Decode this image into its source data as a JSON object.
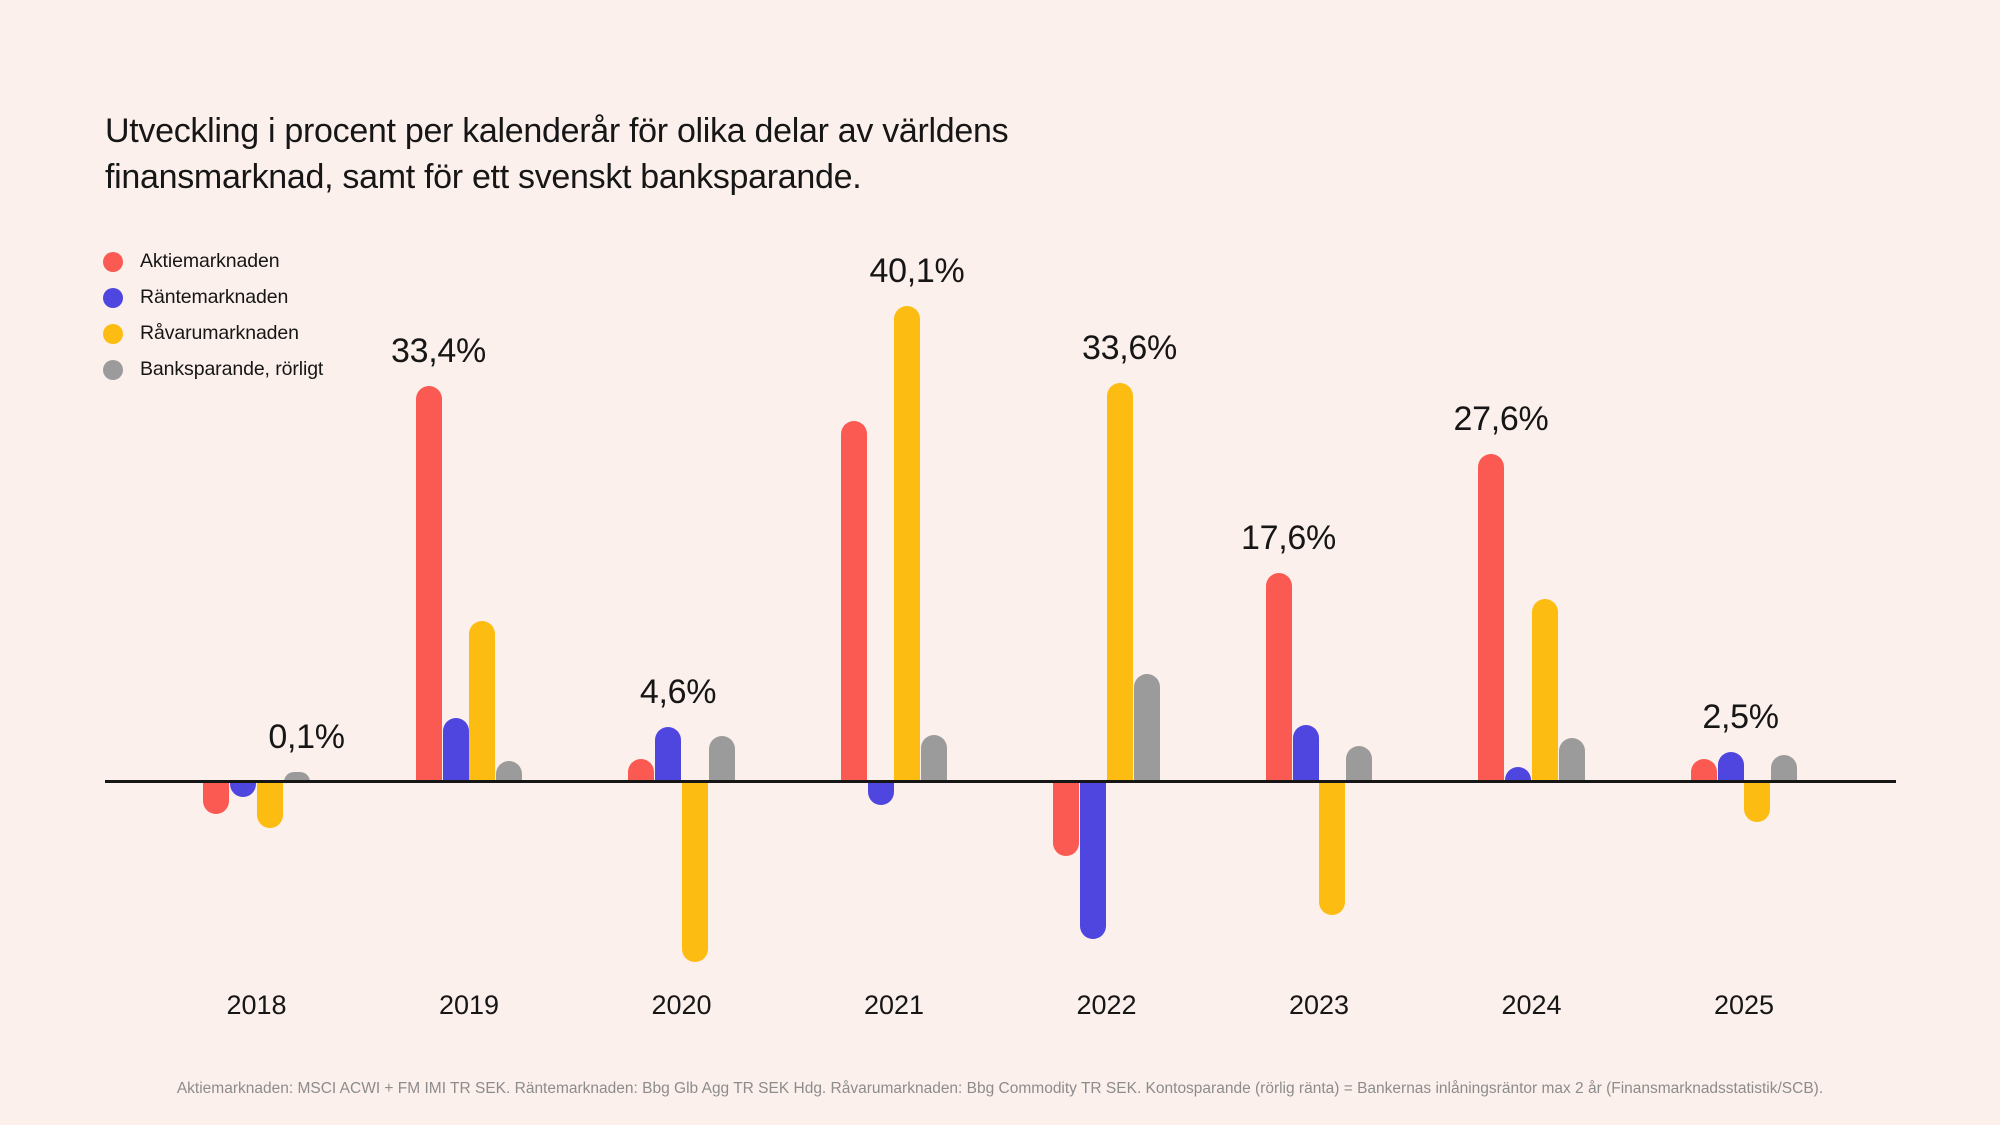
{
  "chart_data": {
    "type": "bar",
    "title": "Utveckling i procent per kalenderår för olika delar av världens finansmarknad, samt för ett svenskt banksparande.",
    "title_lines": [
      "Utveckling i procent per kalenderår för olika delar av världens",
      "finansmarknad, samt för ett svenskt banksparande."
    ],
    "categories": [
      "2018",
      "2019",
      "2020",
      "2021",
      "2022",
      "2023",
      "2024",
      "2025"
    ],
    "series": [
      {
        "name": "Aktiemarknaden",
        "key": "aktiemarknaden",
        "color": "#FA5A52",
        "values": [
          -2.7,
          33.4,
          1.9,
          30.4,
          -6.2,
          17.6,
          27.6,
          1.9
        ]
      },
      {
        "name": "Räntemarknaden",
        "key": "rantemarknaden",
        "color": "#4F46E0",
        "values": [
          -1.3,
          5.4,
          4.6,
          -1.9,
          -13.2,
          4.8,
          1.3,
          2.5
        ]
      },
      {
        "name": "Råvarumarknaden",
        "key": "ravarumarknaden",
        "color": "#FCBC12",
        "values": [
          -3.9,
          13.6,
          -15.2,
          40.1,
          33.6,
          -11.2,
          15.4,
          -3.4
        ]
      },
      {
        "name": "Banksparande, rörligt",
        "key": "banksparande",
        "color": "#9B9B9B",
        "values": [
          0.1,
          1.8,
          3.9,
          4.0,
          9.1,
          3.0,
          3.7,
          2.3
        ]
      }
    ],
    "annotations": [
      {
        "category": "2018",
        "series_index": 3,
        "label": "0,1%"
      },
      {
        "category": "2019",
        "series_index": 0,
        "label": "33,4%"
      },
      {
        "category": "2020",
        "series_index": 1,
        "label": "4,6%"
      },
      {
        "category": "2021",
        "series_index": 2,
        "label": "40,1%"
      },
      {
        "category": "2022",
        "series_index": 2,
        "label": "33,6%"
      },
      {
        "category": "2023",
        "series_index": 0,
        "label": "17,6%"
      },
      {
        "category": "2024",
        "series_index": 0,
        "label": "27,6%"
      },
      {
        "category": "2025",
        "series_index": 1,
        "label": "2,5%"
      }
    ],
    "value_suffix": "%",
    "decimal_separator": ",",
    "ylim": [
      -16,
      42
    ],
    "grid": false,
    "legend_position": "top-left",
    "background_color": "#FCF0EC",
    "footnote": "Aktiemarknaden: MSCI ACWI + FM IMI TR SEK. Räntemarknaden: Bbg Glb Agg TR SEK Hdg. Råvarumarknaden: Bbg Commodity TR SEK. Kontosparande (rörlig ränta) = Bankernas inlåningsräntor max 2 år (Finansmarknadsstatistik/SCB)."
  }
}
